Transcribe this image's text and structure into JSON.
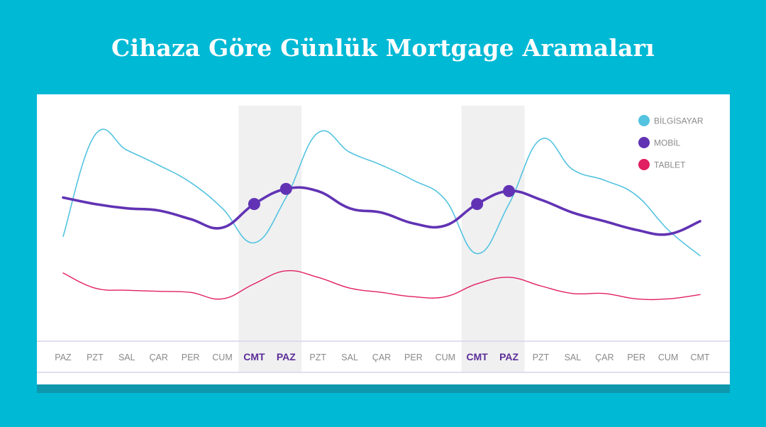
{
  "title": "Cihaza Göre Günlük Mortgage Aramaları",
  "chart_data": {
    "type": "line",
    "title": "Cihaza Göre Günlük Mortgage Aramaları",
    "categories": [
      "PAZ",
      "PZT",
      "SAL",
      "ÇAR",
      "PER",
      "CUM",
      "CMT",
      "PAZ",
      "PZT",
      "SAL",
      "ÇAR",
      "PER",
      "CUM",
      "CMT",
      "PAZ",
      "PZT",
      "SAL",
      "ÇAR",
      "PER",
      "CUM",
      "CMT"
    ],
    "highlight_indices": [
      6,
      7,
      13,
      14
    ],
    "legend_position": "top-right",
    "ylim": [
      0,
      100
    ],
    "series": [
      {
        "name": "BİLGİSAYAR",
        "color": "#53c3e0",
        "values": [
          45,
          92,
          85,
          78,
          70,
          58,
          42,
          63,
          93,
          84,
          78,
          71,
          62,
          37,
          60,
          90,
          76,
          71,
          64,
          48,
          36
        ]
      },
      {
        "name": "MOBİL",
        "color": "#6133b4",
        "values": [
          63,
          60,
          58,
          57,
          53,
          49,
          60,
          67,
          66,
          58,
          56,
          51,
          50,
          60,
          66,
          62,
          56,
          52,
          48,
          46,
          52
        ]
      },
      {
        "name": "TABLET",
        "color": "#e11f63",
        "values": [
          28,
          21,
          20,
          19.5,
          19,
          16,
          23,
          29,
          26,
          21,
          19,
          17,
          17,
          23,
          26,
          22,
          18.5,
          18.5,
          16,
          16,
          18
        ]
      }
    ],
    "markers": [
      {
        "series": "MOBİL",
        "index": 6
      },
      {
        "series": "MOBİL",
        "index": 7
      },
      {
        "series": "MOBİL",
        "index": 13
      },
      {
        "series": "MOBİL",
        "index": 14
      }
    ]
  }
}
